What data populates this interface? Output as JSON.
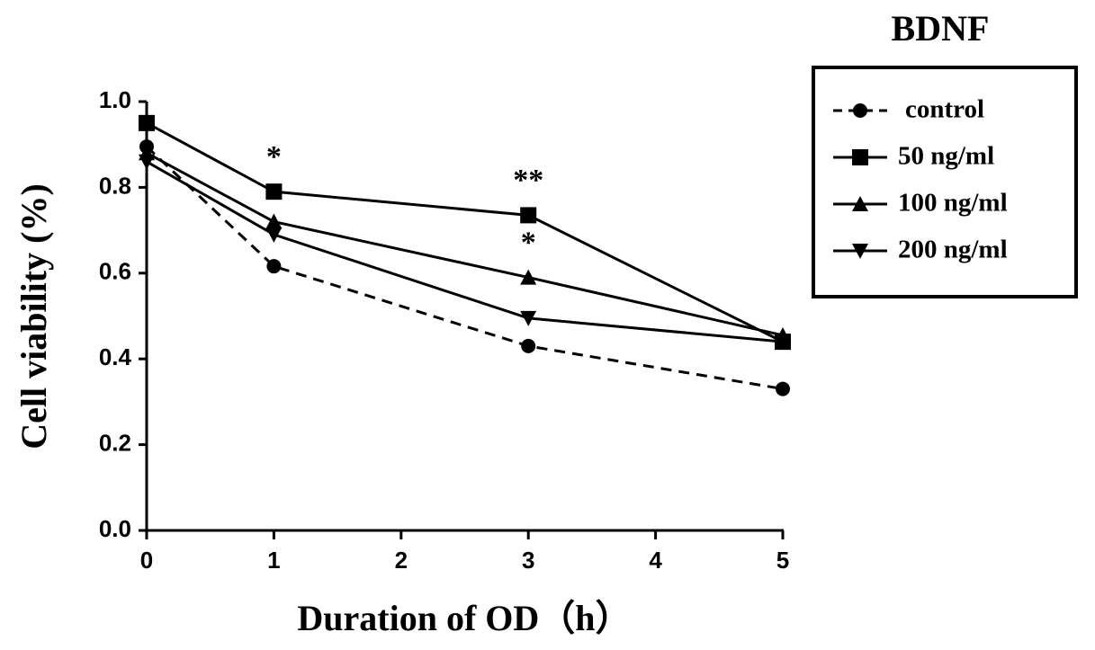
{
  "chart_data": {
    "type": "line",
    "x_label": "Duration of OD（h）",
    "y_label": "Cell viability (%)",
    "legend_title": "BDNF",
    "legend": "right",
    "x": [
      0,
      1,
      3,
      5
    ],
    "xlim": [
      0,
      5
    ],
    "xticks": [
      0,
      1,
      2,
      3,
      4,
      5
    ],
    "ylim": [
      0,
      1.0
    ],
    "yticks": [
      {
        "value": 0,
        "label": "0.0"
      },
      0.2,
      0.4,
      0.6,
      0.8,
      {
        "value": 1.0,
        "label": "1.0"
      }
    ],
    "series": [
      {
        "name": "control",
        "color": "#000000",
        "marker": "circle",
        "dashed": true,
        "values": [
          0.895,
          0.616,
          0.43,
          0.33
        ]
      },
      {
        "name": "50 ng/ml",
        "color": "#000000",
        "marker": "square",
        "dashed": false,
        "values": [
          0.95,
          0.79,
          0.735,
          0.44
        ]
      },
      {
        "name": "100 ng/ml",
        "color": "#000000",
        "marker": "triangle-up",
        "dashed": false,
        "values": [
          0.88,
          0.72,
          0.59,
          0.455
        ]
      },
      {
        "name": "200 ng/ml",
        "color": "#000000",
        "marker": "triangle-down",
        "dashed": false,
        "values": [
          0.86,
          0.69,
          0.495,
          0.44
        ]
      }
    ],
    "annotations": [
      {
        "text": "*",
        "x": 1,
        "y": 0.79
      },
      {
        "text": "**",
        "x": 3,
        "y": 0.735
      },
      {
        "text": "*",
        "x": 3,
        "y": 0.59
      }
    ]
  }
}
